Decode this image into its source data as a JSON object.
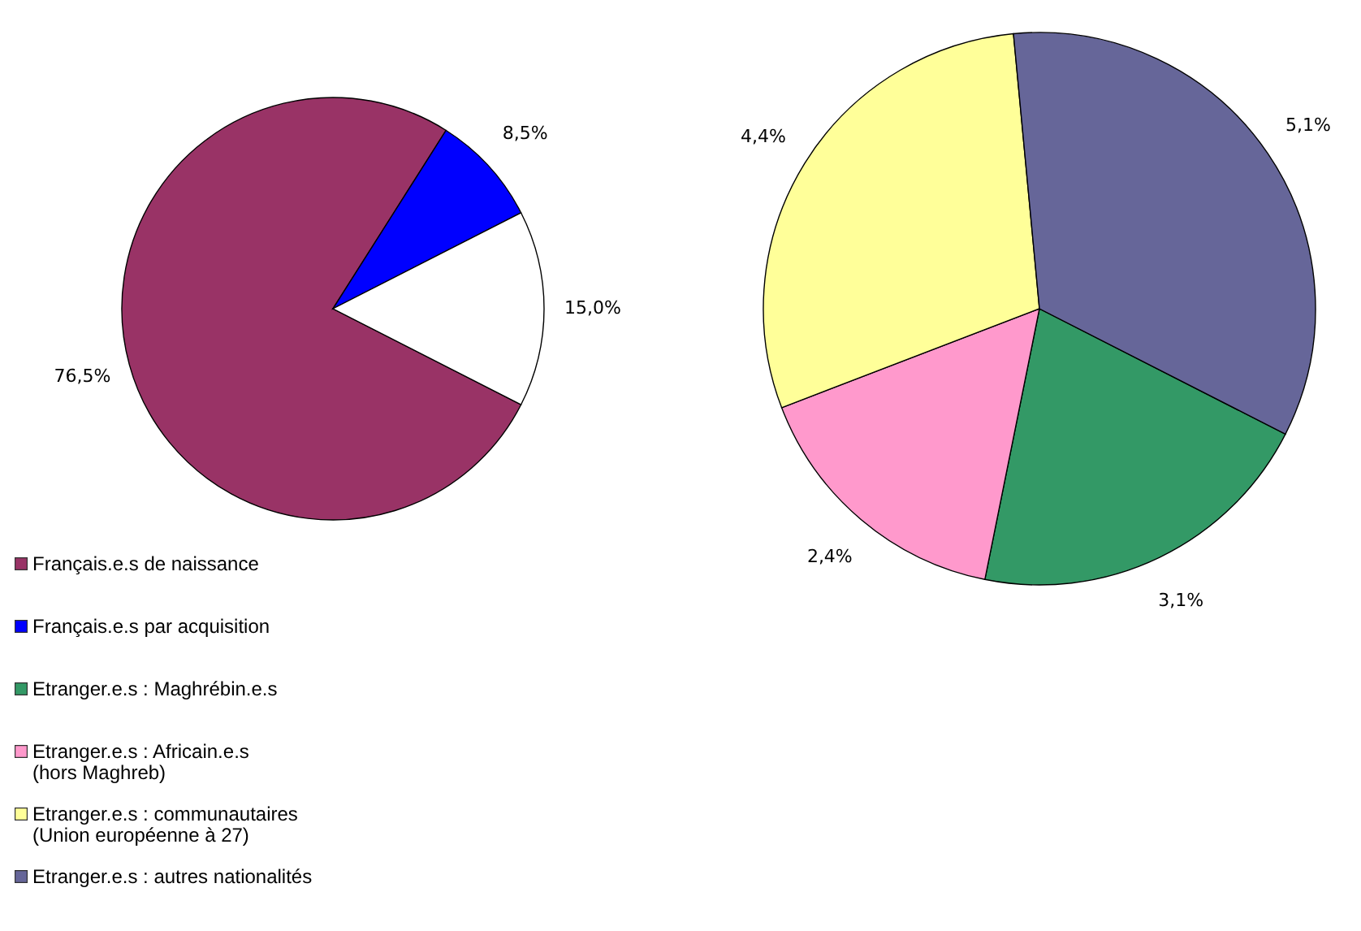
{
  "chart_data": [
    {
      "type": "pie",
      "categories": [
        "Français.e.s de naissance",
        "Français.e.s par acquisition",
        null
      ],
      "values": [
        76.5,
        8.5,
        15.0
      ],
      "colors": [
        "#993366",
        "#0000ff",
        "#ffffff"
      ],
      "value_labels": [
        "76,5%",
        "8,5%",
        "15,0%"
      ],
      "legend": "bottom left"
    },
    {
      "type": "pie",
      "categories": [
        "Etranger.e.s : Maghrébin.e.s",
        "Etranger.e.s : Africain.e.s\n(hors Maghreb)",
        "Etranger.e.s : communautaires\n(Union européenne à 27)",
        "Etranger.e.s : autres nationalités"
      ],
      "values": [
        3.1,
        2.4,
        4.4,
        5.1
      ],
      "colors": [
        "#339966",
        "#ff99cc",
        "#ffff99",
        "#666699"
      ],
      "value_labels": [
        "3,1%",
        "2,4%",
        "4,4%",
        "5,1%"
      ],
      "legend": "bottom left"
    }
  ]
}
